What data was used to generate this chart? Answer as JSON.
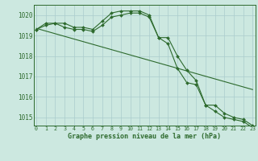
{
  "title": "Graphe pression niveau de la mer (hPa)",
  "background_color": "#cce8e0",
  "grid_color": "#aacccc",
  "line_color": "#2d6a2d",
  "hours": [
    0,
    1,
    2,
    3,
    4,
    5,
    6,
    7,
    8,
    9,
    10,
    11,
    12,
    13,
    14,
    15,
    16,
    17,
    18,
    19,
    20,
    21,
    22,
    23
  ],
  "series1": [
    1019.3,
    1019.6,
    1019.6,
    1019.6,
    1019.4,
    1019.4,
    1019.3,
    1019.7,
    1020.1,
    1020.2,
    1020.2,
    1020.2,
    1020.0,
    1018.9,
    1018.9,
    1018.0,
    1017.3,
    1016.8,
    1015.6,
    1015.6,
    1015.2,
    1015.0,
    1014.9,
    1014.6
  ],
  "series2": [
    1019.3,
    1019.5,
    1019.6,
    1019.4,
    1019.3,
    1019.3,
    1019.2,
    1019.5,
    1019.9,
    1020.0,
    1020.1,
    1020.1,
    1019.9,
    1018.9,
    1018.6,
    1017.4,
    1016.7,
    1016.6,
    1015.6,
    1015.3,
    1015.0,
    1014.9,
    1014.8,
    1014.5
  ],
  "series_linear": [
    1019.35,
    1019.22,
    1019.09,
    1018.96,
    1018.83,
    1018.7,
    1018.57,
    1018.44,
    1018.31,
    1018.18,
    1018.05,
    1017.92,
    1017.79,
    1017.66,
    1017.53,
    1017.4,
    1017.27,
    1017.14,
    1017.01,
    1016.88,
    1016.75,
    1016.62,
    1016.49,
    1016.36
  ],
  "ylim_min": 1014.6,
  "ylim_max": 1020.5,
  "yticks": [
    1015,
    1016,
    1017,
    1018,
    1019,
    1020
  ],
  "xticks": [
    0,
    1,
    2,
    3,
    4,
    5,
    6,
    7,
    8,
    9,
    10,
    11,
    12,
    13,
    14,
    15,
    16,
    17,
    18,
    19,
    20,
    21,
    22,
    23
  ],
  "xlabel_fontsize": 6.0,
  "ytick_fontsize": 5.5,
  "xtick_fontsize": 4.8
}
